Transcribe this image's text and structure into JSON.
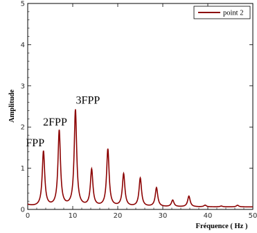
{
  "chart_data": {
    "type": "line",
    "xlabel": "Fréquence ( Hz )",
    "ylabel": "Amplitude",
    "xlim": [
      0,
      50
    ],
    "ylim": [
      0,
      5
    ],
    "x_ticks": [
      0,
      10,
      20,
      30,
      40,
      50
    ],
    "y_ticks": [
      0,
      1,
      2,
      3,
      4,
      5
    ],
    "x_tick_labels": [
      "0",
      "10",
      "20",
      "30",
      "40",
      "50"
    ],
    "y_tick_labels": [
      "0",
      "1",
      "2",
      "3",
      "4",
      "5"
    ],
    "grid": false,
    "legend_position": "top-right",
    "series": [
      {
        "name": "point 2",
        "color": "#8b0000",
        "peaks": [
          {
            "x": 3.5,
            "y": 1.4
          },
          {
            "x": 7.0,
            "y": 1.9
          },
          {
            "x": 10.6,
            "y": 2.4
          },
          {
            "x": 14.2,
            "y": 0.95
          },
          {
            "x": 17.8,
            "y": 1.45
          },
          {
            "x": 21.3,
            "y": 0.85
          },
          {
            "x": 25.0,
            "y": 0.75
          },
          {
            "x": 28.6,
            "y": 0.52
          },
          {
            "x": 32.2,
            "y": 0.22
          },
          {
            "x": 35.8,
            "y": 0.32
          },
          {
            "x": 39.4,
            "y": 0.1
          },
          {
            "x": 43.0,
            "y": 0.08
          },
          {
            "x": 46.6,
            "y": 0.1
          }
        ],
        "baseline": 0.06
      }
    ],
    "annotations": [
      {
        "text": "FPP",
        "x": 3.5,
        "y": 1.4
      },
      {
        "text": "2FPP",
        "x": 7.0,
        "y": 1.9
      },
      {
        "text": "3FPP",
        "x": 10.6,
        "y": 2.4
      }
    ]
  }
}
